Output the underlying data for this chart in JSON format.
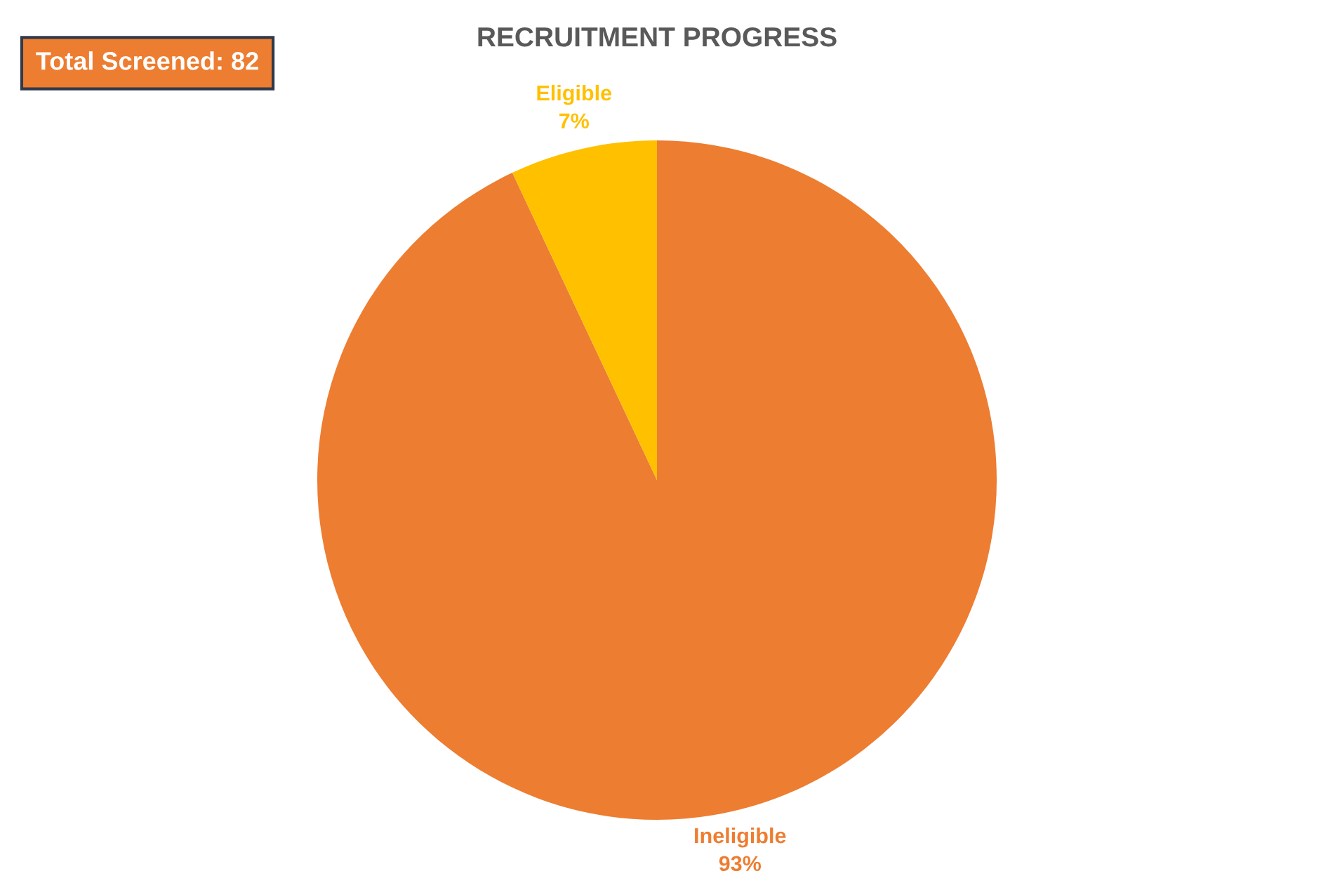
{
  "chart_data": {
    "type": "pie",
    "title": "RECRUITMENT PROGRESS",
    "categories": [
      "Ineligible",
      "Eligible"
    ],
    "values": [
      93,
      7
    ],
    "value_labels": [
      "93%",
      "7%"
    ],
    "colors": [
      "#ed7d31",
      "#ffc000"
    ],
    "annotations": [
      "Total Screened: 82"
    ],
    "legend": false
  }
}
